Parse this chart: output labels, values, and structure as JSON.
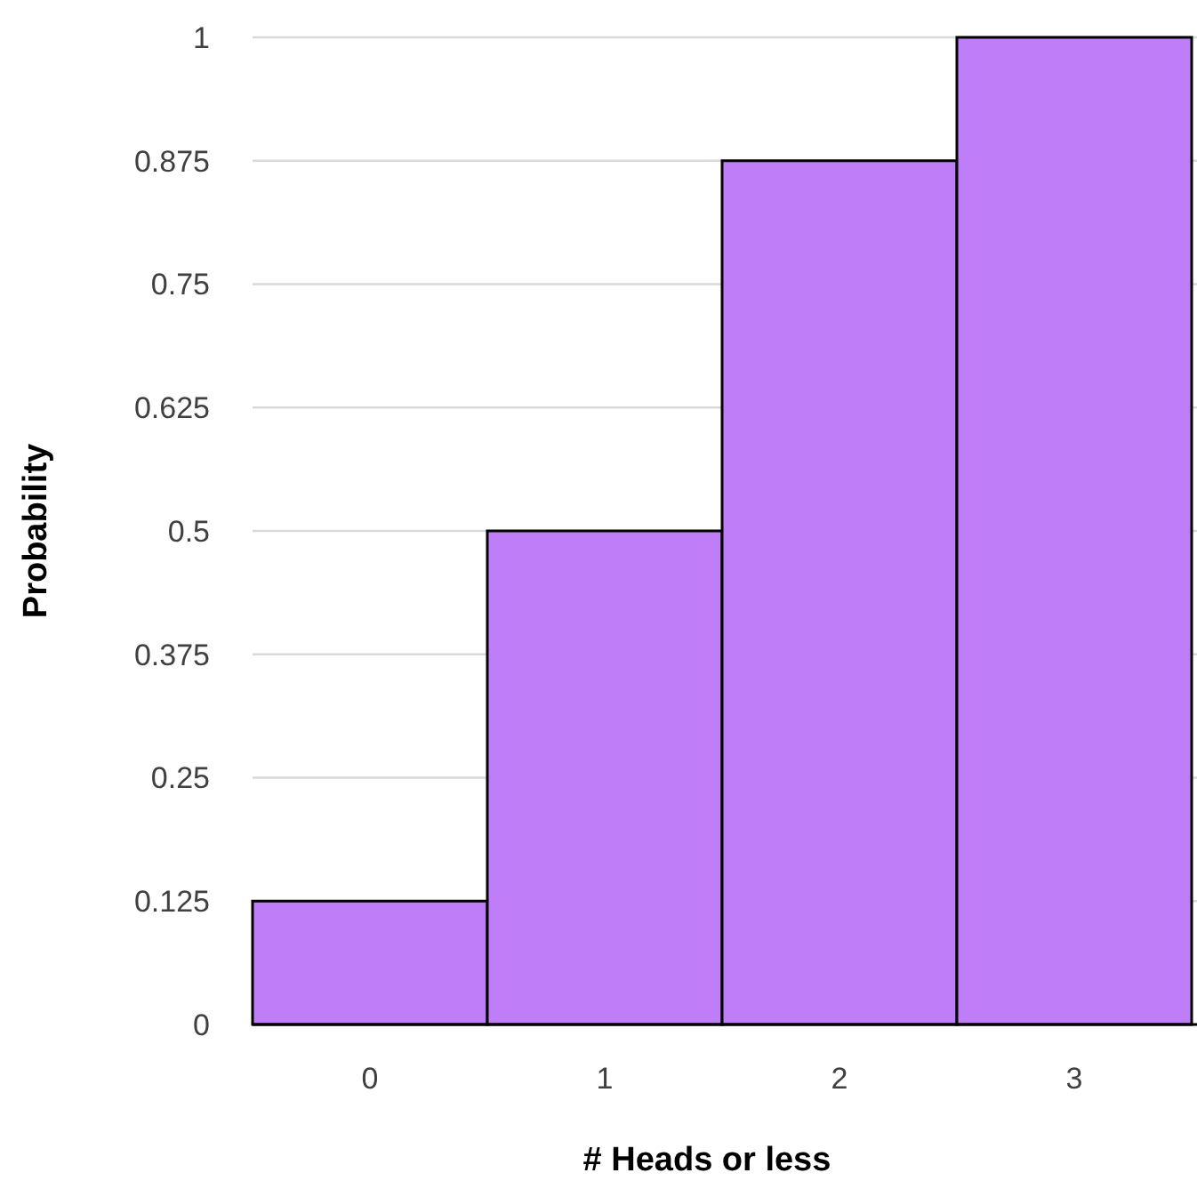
{
  "chart_data": {
    "type": "bar",
    "xlabel": "# Heads or less",
    "ylabel": "Probability",
    "categories": [
      "0",
      "1",
      "2",
      "3"
    ],
    "values": [
      0.125,
      0.5,
      0.875,
      1
    ],
    "color": "#bf7ef8",
    "ylim": [
      0,
      1
    ],
    "yticks": [
      0,
      0.125,
      0.25,
      0.375,
      0.5,
      0.625,
      0.75,
      0.875,
      1
    ],
    "grid": "y"
  }
}
